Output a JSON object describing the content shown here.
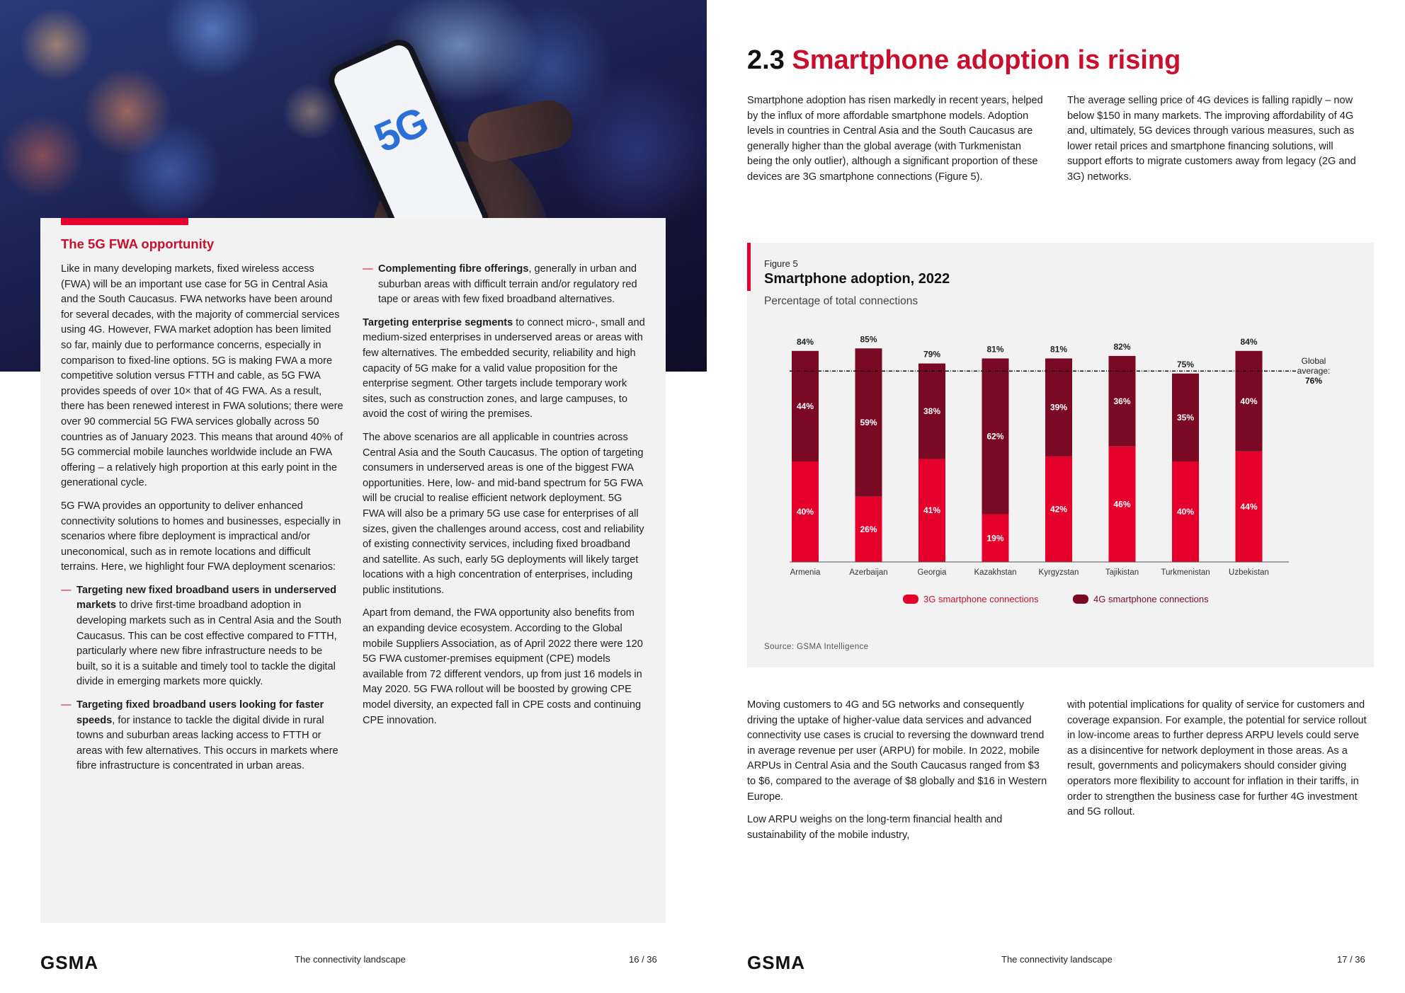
{
  "hero": {
    "phone_text": "5G"
  },
  "box": {
    "title": "The 5G FWA opportunity",
    "col1": {
      "p1": "Like in many developing markets, fixed wireless access (FWA) will be an important use case for 5G in Central Asia and the South Caucasus. FWA networks have been around for several decades, with the majority of commercial services using 4G. However, FWA market adoption has been limited so far, mainly due to performance concerns, especially in comparison to fixed-line options. 5G is making FWA a more competitive solution versus FTTH and cable, as 5G FWA provides speeds of over 10× that of 4G FWA. As a result, there has been renewed interest in FWA solutions; there were over 90 commercial 5G FWA services globally across 50 countries as of January 2023. This means that around 40% of 5G commercial mobile launches worldwide include an FWA offering – a relatively high proportion at this early point in the generational cycle.",
      "p2": "5G FWA provides an opportunity to deliver enhanced connectivity solutions to homes and businesses, especially in scenarios where fibre deployment is impractical and/or uneconomical, such as in remote locations and difficult terrains. Here, we highlight four FWA deployment scenarios:",
      "b1_bold": "Targeting new fixed broadband users in underserved markets",
      "b1_rest": " to drive first-time broadband adoption in developing markets such as in Central Asia and the South Caucasus. This can be cost effective compared to FTTH, particularly where new fibre infrastructure needs to be built, so it is a suitable and timely tool to tackle the digital divide in emerging markets more quickly.",
      "b2_bold": "Targeting fixed broadband users looking for faster speeds",
      "b2_rest": ", for instance to tackle the digital divide in rural towns and suburban areas lacking access to FTTH or areas with few alternatives. This occurs in markets where fibre infrastructure is concentrated in urban areas."
    },
    "col2": {
      "b3_bold": "Complementing fibre offerings",
      "b3_rest": ", generally in urban and suburban areas with difficult terrain and/or regulatory red tape or areas with few fixed broadband alternatives.",
      "p3_bold": "Targeting enterprise segments",
      "p3_rest": " to connect micro-, small and medium-sized enterprises in underserved areas or areas with few alternatives. The embedded security, reliability and high capacity of 5G make for a valid value proposition for the enterprise segment. Other targets include temporary work sites, such as construction zones, and large campuses, to avoid the cost of wiring the premises.",
      "p4": "The above scenarios are all applicable in countries across Central Asia and the South Caucasus. The option of targeting consumers in underserved areas is one of the biggest FWA opportunities. Here, low- and mid-band spectrum for 5G FWA will be crucial to realise efficient network deployment. 5G FWA will also be a primary 5G use case for enterprises of all sizes, given the challenges around access, cost and reliability of existing connectivity services, including fixed broadband and satellite. As such, early 5G deployments will likely target locations with a high concentration of enterprises, including public institutions.",
      "p5": "Apart from demand, the FWA opportunity also benefits from an expanding device ecosystem. According to the Global mobile Suppliers Association, as of April 2022 there were 120 5G FWA customer-premises equipment (CPE) models available from 72 different vendors, up from just 16 models in May 2020. 5G FWA rollout will be boosted by growing CPE model diversity, an expected fall in CPE costs and continuing CPE innovation."
    }
  },
  "section": {
    "number": "2.3",
    "title": "Smartphone adoption is rising",
    "intro_left": "Smartphone adoption has risen markedly in recent years, helped by the influx of more affordable smartphone models. Adoption levels in countries in Central Asia and the South Caucasus are generally higher than the global average (with Turkmenistan being the only outlier), although a significant proportion of these devices are 3G smartphone connections (Figure 5).",
    "intro_right": "The average selling price of 4G devices is falling rapidly – now below $150 in many markets. The improving affordability of 4G and, ultimately, 5G devices through various measures, such as lower retail prices and smartphone financing solutions, will support efforts to migrate customers away from legacy (2G and 3G) networks.",
    "bottom_left_p1": "Moving customers to 4G and 5G networks and consequently driving the uptake of higher-value data services and advanced connectivity use cases is crucial to reversing the downward trend in average revenue per user (ARPU) for mobile. In 2022, mobile ARPUs in Central Asia and the South Caucasus ranged from $3 to $6, compared to the average of $8 globally and $16 in Western Europe.",
    "bottom_left_p2": "Low ARPU weighs on the long-term financial health and sustainability of the mobile industry,",
    "bottom_right": "with potential implications for quality of service for customers and coverage expansion. For example, the potential for service rollout in low-income areas to further depress ARPU levels could serve as a disincentive for network deployment in those areas. As a result, governments and policymakers should consider giving operators more flexibility to account for inflation in their tariffs, in order to strengthen the business case for further 4G investment and 5G rollout."
  },
  "figure": {
    "label": "Figure 5",
    "title": "Smartphone adoption, 2022",
    "subtitle": "Percentage of total connections",
    "source": "Source: GSMA Intelligence"
  },
  "chart_data": {
    "type": "bar",
    "stacked": true,
    "categories": [
      "Armenia",
      "Azerbaijan",
      "Georgia",
      "Kazakhstan",
      "Kyrgyzstan",
      "Tajikistan",
      "Turkmenistan",
      "Uzbekistan"
    ],
    "series": [
      {
        "name": "3G smartphone connections",
        "values": [
          40,
          26,
          41,
          19,
          42,
          46,
          40,
          44
        ],
        "labels": [
          "40%",
          "26%",
          "41%",
          "19%",
          "42%",
          "46%",
          "40%",
          "44%"
        ],
        "color": "#e4002b"
      },
      {
        "name": "4G smartphone connections",
        "values": [
          44,
          59,
          38,
          62,
          39,
          36,
          35,
          40
        ],
        "labels": [
          "44%",
          "59%",
          "38%",
          "62%",
          "39%",
          "36%",
          "35%",
          "40%"
        ],
        "color": "#7a0a24"
      }
    ],
    "totals": [
      "84%",
      "85%",
      "79%",
      "81%",
      "81%",
      "82%",
      "75%",
      "84%"
    ],
    "total_values": [
      84,
      85,
      79,
      81,
      81,
      82,
      75,
      84
    ],
    "reference_line": {
      "value": 76,
      "label_line1": "Global",
      "label_line2": "average:",
      "label_value": "76%"
    },
    "ylim": [
      0,
      100
    ],
    "legend_placement": "bottom"
  },
  "footer": {
    "logo": "GSMA",
    "section_name": "The connectivity landscape",
    "left_page": "16 / 36",
    "right_page": "17 / 36"
  }
}
